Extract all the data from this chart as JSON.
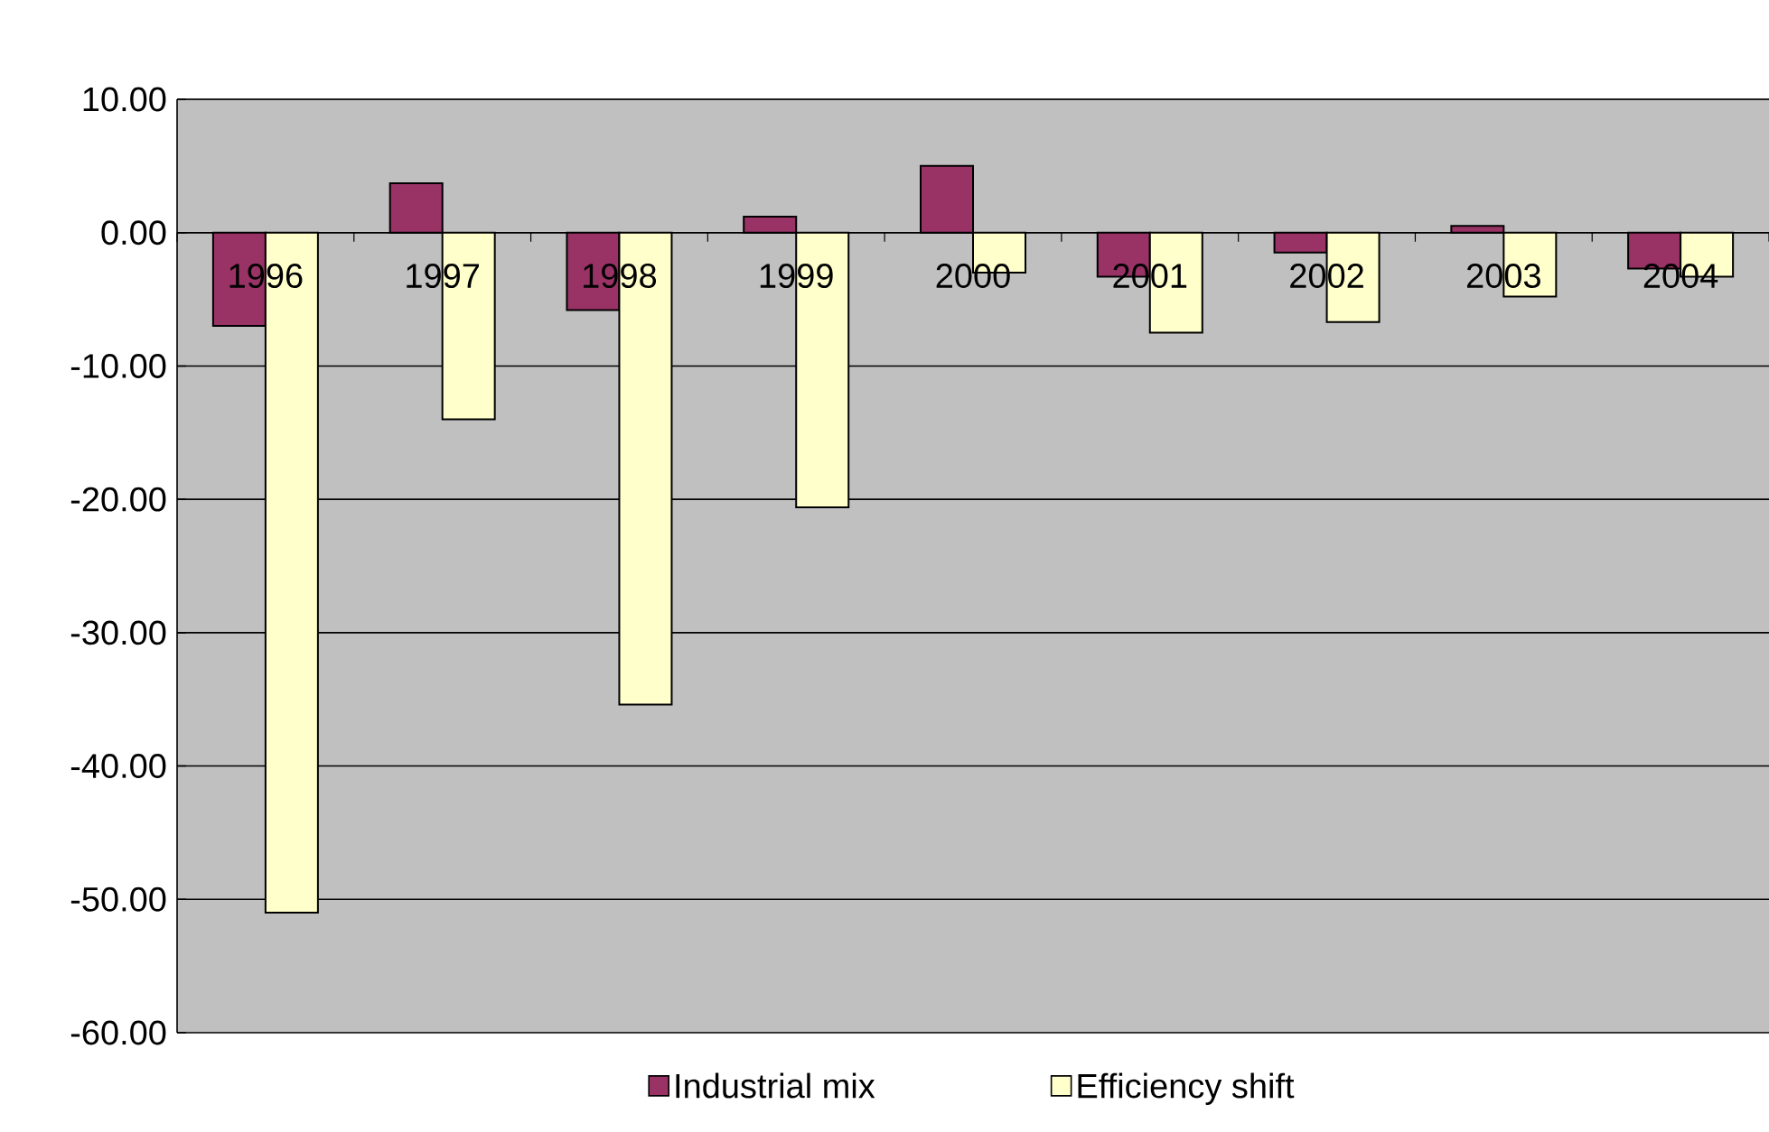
{
  "chart_data": {
    "type": "bar",
    "categories": [
      "1996",
      "1997",
      "1998",
      "1999",
      "2000",
      "2001",
      "2002",
      "2003",
      "2004"
    ],
    "series": [
      {
        "name": "Industrial mix",
        "color": "#993366",
        "values": [
          -7.0,
          3.7,
          -5.8,
          1.2,
          5.0,
          -3.3,
          -1.5,
          0.5,
          -2.7
        ]
      },
      {
        "name": "Efficiency shift",
        "color": "#ffffcc",
        "values": [
          -51.0,
          -14.0,
          -35.4,
          -20.6,
          -3.0,
          -7.5,
          -6.7,
          -4.8,
          -3.3
        ]
      }
    ],
    "ylim": [
      -60,
      10
    ],
    "yticks": [
      {
        "value": 10,
        "label": "10.00"
      },
      {
        "value": 0,
        "label": "0.00"
      },
      {
        "value": -10,
        "label": "-10.00"
      },
      {
        "value": -20,
        "label": "-20.00"
      },
      {
        "value": -30,
        "label": "-30.00"
      },
      {
        "value": -40,
        "label": "-40.00"
      },
      {
        "value": -50,
        "label": "-50.00"
      },
      {
        "value": -60,
        "label": "-60.00"
      }
    ],
    "grid": "y",
    "legend": "bottom"
  }
}
